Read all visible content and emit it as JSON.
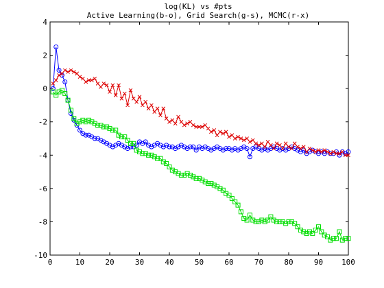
{
  "chart_data": {
    "type": "line",
    "title": "log(KL) vs #pts",
    "subtitle": "Active Learning(b-o), Grid Search(g-s), MCMC(r-x)",
    "xlabel": "",
    "ylabel": "",
    "xlim": [
      0,
      100
    ],
    "ylim": [
      -10,
      4
    ],
    "xticks": [
      "0",
      "10",
      "20",
      "30",
      "40",
      "50",
      "60",
      "70",
      "80",
      "90",
      "100"
    ],
    "yticks": [
      "4",
      "2",
      "0",
      "-2",
      "-4",
      "-6",
      "-8",
      "-10"
    ],
    "grid": false,
    "series": [
      {
        "color": "#0000ff",
        "marker": "circle",
        "x": [
          1,
          2,
          3,
          4,
          5,
          6,
          7,
          8,
          9,
          10,
          11,
          12,
          13,
          14,
          15,
          16,
          17,
          18,
          19,
          20,
          21,
          22,
          23,
          24,
          25,
          26,
          27,
          28,
          29,
          30,
          31,
          32,
          33,
          34,
          35,
          36,
          37,
          38,
          39,
          40,
          41,
          42,
          43,
          44,
          45,
          46,
          47,
          48,
          49,
          50,
          51,
          52,
          53,
          54,
          55,
          56,
          57,
          58,
          59,
          60,
          61,
          62,
          63,
          64,
          65,
          66,
          67,
          68,
          69,
          70,
          71,
          72,
          73,
          74,
          75,
          76,
          77,
          78,
          79,
          80,
          81,
          82,
          83,
          84,
          85,
          86,
          87,
          88,
          89,
          90,
          91,
          92,
          93,
          94,
          95,
          96,
          97,
          98,
          99,
          100
        ],
        "y": [
          0.0,
          2.5,
          1.1,
          0.8,
          0.4,
          -0.7,
          -1.5,
          -1.9,
          -2.2,
          -2.5,
          -2.7,
          -2.8,
          -2.8,
          -2.9,
          -3.0,
          -3.0,
          -3.1,
          -3.2,
          -3.3,
          -3.4,
          -3.5,
          -3.4,
          -3.3,
          -3.4,
          -3.5,
          -3.6,
          -3.5,
          -3.5,
          -3.4,
          -3.2,
          -3.3,
          -3.2,
          -3.4,
          -3.5,
          -3.4,
          -3.3,
          -3.4,
          -3.5,
          -3.4,
          -3.5,
          -3.5,
          -3.6,
          -3.5,
          -3.4,
          -3.5,
          -3.6,
          -3.5,
          -3.5,
          -3.7,
          -3.5,
          -3.6,
          -3.5,
          -3.6,
          -3.7,
          -3.6,
          -3.5,
          -3.6,
          -3.7,
          -3.6,
          -3.6,
          -3.7,
          -3.6,
          -3.7,
          -3.6,
          -3.5,
          -3.6,
          -4.1,
          -3.6,
          -3.5,
          -3.6,
          -3.7,
          -3.6,
          -3.7,
          -3.6,
          -3.5,
          -3.6,
          -3.7,
          -3.6,
          -3.7,
          -3.6,
          -3.5,
          -3.6,
          -3.7,
          -3.8,
          -3.7,
          -3.9,
          -3.8,
          -3.7,
          -3.8,
          -3.9,
          -3.8,
          -3.9,
          -3.8,
          -3.9,
          -3.9,
          -3.8,
          -4.0,
          -3.8,
          -3.9,
          -3.8
        ]
      },
      {
        "color": "#00dd00",
        "marker": "square",
        "x": [
          1,
          2,
          3,
          4,
          5,
          6,
          7,
          8,
          9,
          10,
          11,
          12,
          13,
          14,
          15,
          16,
          17,
          18,
          19,
          20,
          21,
          22,
          23,
          24,
          25,
          26,
          27,
          28,
          29,
          30,
          31,
          32,
          33,
          34,
          35,
          36,
          37,
          38,
          39,
          40,
          41,
          42,
          43,
          44,
          45,
          46,
          47,
          48,
          49,
          50,
          51,
          52,
          53,
          54,
          55,
          56,
          57,
          58,
          59,
          60,
          61,
          62,
          63,
          64,
          65,
          66,
          67,
          68,
          69,
          70,
          71,
          72,
          73,
          74,
          75,
          76,
          77,
          78,
          79,
          80,
          81,
          82,
          83,
          84,
          85,
          86,
          87,
          88,
          89,
          90,
          91,
          92,
          93,
          94,
          95,
          96,
          97,
          98,
          99,
          100
        ],
        "y": [
          -0.2,
          -0.4,
          -0.2,
          -0.1,
          -0.3,
          -0.7,
          -1.3,
          -1.8,
          -2.1,
          -2.0,
          -1.9,
          -2.0,
          -1.9,
          -2.0,
          -2.1,
          -2.2,
          -2.2,
          -2.3,
          -2.3,
          -2.4,
          -2.5,
          -2.5,
          -2.8,
          -2.9,
          -2.9,
          -3.1,
          -3.3,
          -3.3,
          -3.7,
          -3.8,
          -3.9,
          -3.9,
          -4.0,
          -4.0,
          -4.1,
          -4.2,
          -4.2,
          -4.4,
          -4.5,
          -4.7,
          -4.9,
          -5.0,
          -5.1,
          -5.2,
          -5.2,
          -5.1,
          -5.2,
          -5.3,
          -5.4,
          -5.4,
          -5.5,
          -5.6,
          -5.7,
          -5.7,
          -5.8,
          -5.9,
          -6.0,
          -6.1,
          -6.3,
          -6.4,
          -6.6,
          -6.8,
          -7.0,
          -7.4,
          -7.8,
          -7.9,
          -7.6,
          -7.9,
          -8.0,
          -8.0,
          -7.9,
          -8.0,
          -7.9,
          -7.7,
          -7.9,
          -8.0,
          -8.0,
          -8.0,
          -8.1,
          -8.0,
          -8.0,
          -8.1,
          -8.3,
          -8.5,
          -8.6,
          -8.7,
          -8.6,
          -8.7,
          -8.5,
          -8.3,
          -8.6,
          -8.8,
          -8.9,
          -9.1,
          -9.0,
          -9.0,
          -8.6,
          -9.1,
          -9.0,
          -9.0
        ]
      },
      {
        "color": "#dd0000",
        "marker": "x",
        "x": [
          1,
          2,
          3,
          4,
          5,
          6,
          7,
          8,
          9,
          10,
          11,
          12,
          13,
          14,
          15,
          16,
          17,
          18,
          19,
          20,
          21,
          22,
          23,
          24,
          25,
          26,
          27,
          28,
          29,
          30,
          31,
          32,
          33,
          34,
          35,
          36,
          37,
          38,
          39,
          40,
          41,
          42,
          43,
          44,
          45,
          46,
          47,
          48,
          49,
          50,
          51,
          52,
          53,
          54,
          55,
          56,
          57,
          58,
          59,
          60,
          61,
          62,
          63,
          64,
          65,
          66,
          67,
          68,
          69,
          70,
          71,
          72,
          73,
          74,
          75,
          76,
          77,
          78,
          79,
          80,
          81,
          82,
          83,
          84,
          85,
          86,
          87,
          88,
          89,
          90,
          91,
          92,
          93,
          94,
          95,
          96,
          97,
          98,
          99,
          100
        ],
        "y": [
          0.3,
          0.5,
          0.8,
          0.9,
          1.1,
          1.0,
          1.1,
          1.0,
          0.9,
          0.7,
          0.6,
          0.4,
          0.5,
          0.5,
          0.6,
          0.3,
          0.1,
          0.3,
          0.2,
          -0.2,
          0.2,
          -0.4,
          0.2,
          -0.6,
          -0.3,
          -1.0,
          -0.1,
          -0.6,
          -0.8,
          -0.5,
          -1.0,
          -0.8,
          -1.2,
          -1.0,
          -1.4,
          -1.2,
          -1.6,
          -1.2,
          -1.8,
          -2.0,
          -1.9,
          -2.1,
          -1.7,
          -2.0,
          -2.2,
          -2.1,
          -2.0,
          -2.2,
          -2.3,
          -2.3,
          -2.3,
          -2.2,
          -2.4,
          -2.6,
          -2.5,
          -2.8,
          -2.6,
          -2.7,
          -2.6,
          -2.9,
          -2.8,
          -3.0,
          -2.9,
          -3.0,
          -3.1,
          -3.0,
          -3.2,
          -3.1,
          -3.3,
          -3.4,
          -3.3,
          -3.5,
          -3.2,
          -3.4,
          -3.6,
          -3.3,
          -3.4,
          -3.6,
          -3.3,
          -3.5,
          -3.6,
          -3.3,
          -3.5,
          -3.6,
          -3.5,
          -3.8,
          -3.6,
          -3.7,
          -3.8,
          -3.7,
          -3.8,
          -3.7,
          -3.8,
          -3.9,
          -3.8,
          -3.9,
          -3.9,
          -3.8,
          -4.0,
          -4.0
        ]
      }
    ]
  }
}
